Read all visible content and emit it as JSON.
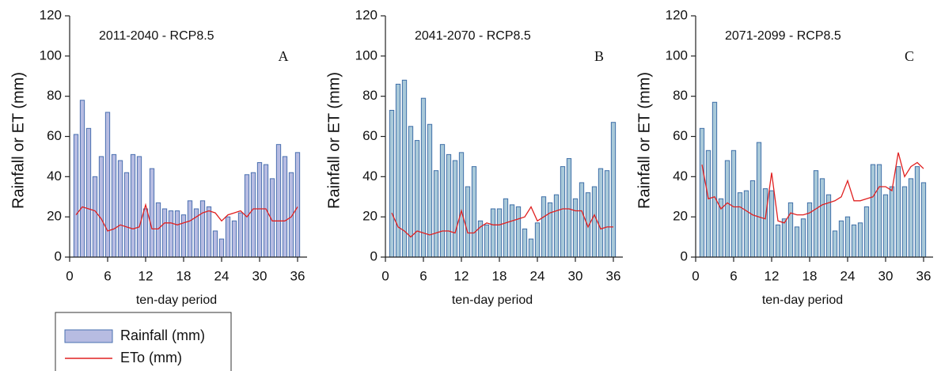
{
  "chart_data": [
    {
      "type": "bar_line",
      "annotation": "2011-2040 - RCP8.5",
      "panel_label": "A",
      "xlabel": "ten-day period",
      "ylabel": "Rainfall or ET (mm)",
      "x": [
        1,
        2,
        3,
        4,
        5,
        6,
        7,
        8,
        9,
        10,
        11,
        12,
        13,
        14,
        15,
        16,
        17,
        18,
        19,
        20,
        21,
        22,
        23,
        24,
        25,
        26,
        27,
        28,
        29,
        30,
        31,
        32,
        33,
        34,
        35,
        36
      ],
      "series": [
        {
          "name": "Rainfall (mm)",
          "type": "bar",
          "color": "#b7bce2",
          "edgecolor": "#4a70b0",
          "values": [
            61,
            78,
            64,
            40,
            50,
            72,
            51,
            48,
            42,
            51,
            50,
            24,
            44,
            27,
            24,
            23,
            23,
            21,
            28,
            24,
            28,
            25,
            13,
            9,
            20,
            18,
            22,
            41,
            42,
            47,
            46,
            39,
            56,
            50,
            42,
            52
          ]
        },
        {
          "name": "ETo (mm)",
          "type": "line",
          "color": "#e02020",
          "values": [
            21,
            25,
            24,
            23,
            19,
            13,
            14,
            16,
            15,
            14,
            15,
            26,
            14,
            14,
            17,
            17,
            16,
            17,
            18,
            20,
            22,
            23,
            22,
            18,
            21,
            22,
            23,
            20,
            24,
            24,
            24,
            18,
            18,
            18,
            20,
            25
          ]
        }
      ],
      "xlim": [
        0,
        37.5
      ],
      "xticks": [
        0,
        6,
        12,
        18,
        24,
        30,
        36
      ],
      "ylim": [
        0,
        120
      ],
      "yticks": [
        0,
        20,
        40,
        60,
        80,
        100,
        120
      ]
    },
    {
      "type": "bar_line",
      "annotation": "2041-2070 - RCP8.5",
      "panel_label": "B",
      "xlabel": "ten-day period",
      "ylabel": "Rainfall or ET (mm)",
      "x": [
        1,
        2,
        3,
        4,
        5,
        6,
        7,
        8,
        9,
        10,
        11,
        12,
        13,
        14,
        15,
        16,
        17,
        18,
        19,
        20,
        21,
        22,
        23,
        24,
        25,
        26,
        27,
        28,
        29,
        30,
        31,
        32,
        33,
        34,
        35,
        36
      ],
      "series": [
        {
          "name": "Rainfall (mm)",
          "type": "bar",
          "color": "#a9c9d9",
          "edgecolor": "#3f6fa8",
          "values": [
            73,
            86,
            88,
            65,
            58,
            79,
            66,
            43,
            56,
            51,
            48,
            52,
            35,
            45,
            18,
            16,
            24,
            24,
            29,
            26,
            25,
            14,
            9,
            17,
            30,
            27,
            31,
            45,
            49,
            29,
            37,
            32,
            35,
            44,
            43,
            67
          ]
        },
        {
          "name": "ETo (mm)",
          "type": "line",
          "color": "#e02020",
          "values": [
            22,
            15,
            13,
            10,
            13,
            12,
            11,
            12,
            13,
            13,
            12,
            23,
            12,
            12,
            15,
            17,
            16,
            16,
            17,
            18,
            19,
            20,
            25,
            18,
            20,
            22,
            23,
            24,
            24,
            23,
            23,
            15,
            21,
            14,
            15,
            15
          ]
        }
      ],
      "xlim": [
        0,
        37.5
      ],
      "xticks": [
        0,
        6,
        12,
        18,
        24,
        30,
        36
      ],
      "ylim": [
        0,
        120
      ],
      "yticks": [
        0,
        20,
        40,
        60,
        80,
        100,
        120
      ]
    },
    {
      "type": "bar_line",
      "annotation": "2071-2099 - RCP8.5",
      "panel_label": "C",
      "xlabel": "ten-day period",
      "ylabel": "Rainfall or ET (mm)",
      "x": [
        1,
        2,
        3,
        4,
        5,
        6,
        7,
        8,
        9,
        10,
        11,
        12,
        13,
        14,
        15,
        16,
        17,
        18,
        19,
        20,
        21,
        22,
        23,
        24,
        25,
        26,
        27,
        28,
        29,
        30,
        31,
        32,
        33,
        34,
        35,
        36
      ],
      "series": [
        {
          "name": "Rainfall (mm)",
          "type": "bar",
          "color": "#a9c9d9",
          "edgecolor": "#3f6fa8",
          "values": [
            64,
            53,
            77,
            29,
            48,
            53,
            32,
            33,
            38,
            57,
            34,
            33,
            16,
            19,
            27,
            15,
            19,
            27,
            43,
            39,
            31,
            13,
            18,
            20,
            16,
            17,
            25,
            46,
            46,
            31,
            35,
            45,
            35,
            39,
            45,
            37
          ]
        },
        {
          "name": "ETo (mm)",
          "type": "line",
          "color": "#e02020",
          "values": [
            46,
            29,
            30,
            24,
            27,
            25,
            25,
            23,
            21,
            20,
            19,
            42,
            18,
            17,
            22,
            21,
            21,
            22,
            24,
            26,
            27,
            28,
            30,
            38,
            28,
            28,
            29,
            30,
            35,
            35,
            33,
            52,
            40,
            45,
            47,
            44
          ]
        }
      ],
      "xlim": [
        0,
        37.5
      ],
      "xticks": [
        0,
        6,
        12,
        18,
        24,
        30,
        36
      ],
      "ylim": [
        0,
        120
      ],
      "yticks": [
        0,
        20,
        40,
        60,
        80,
        100,
        120
      ]
    }
  ]
}
